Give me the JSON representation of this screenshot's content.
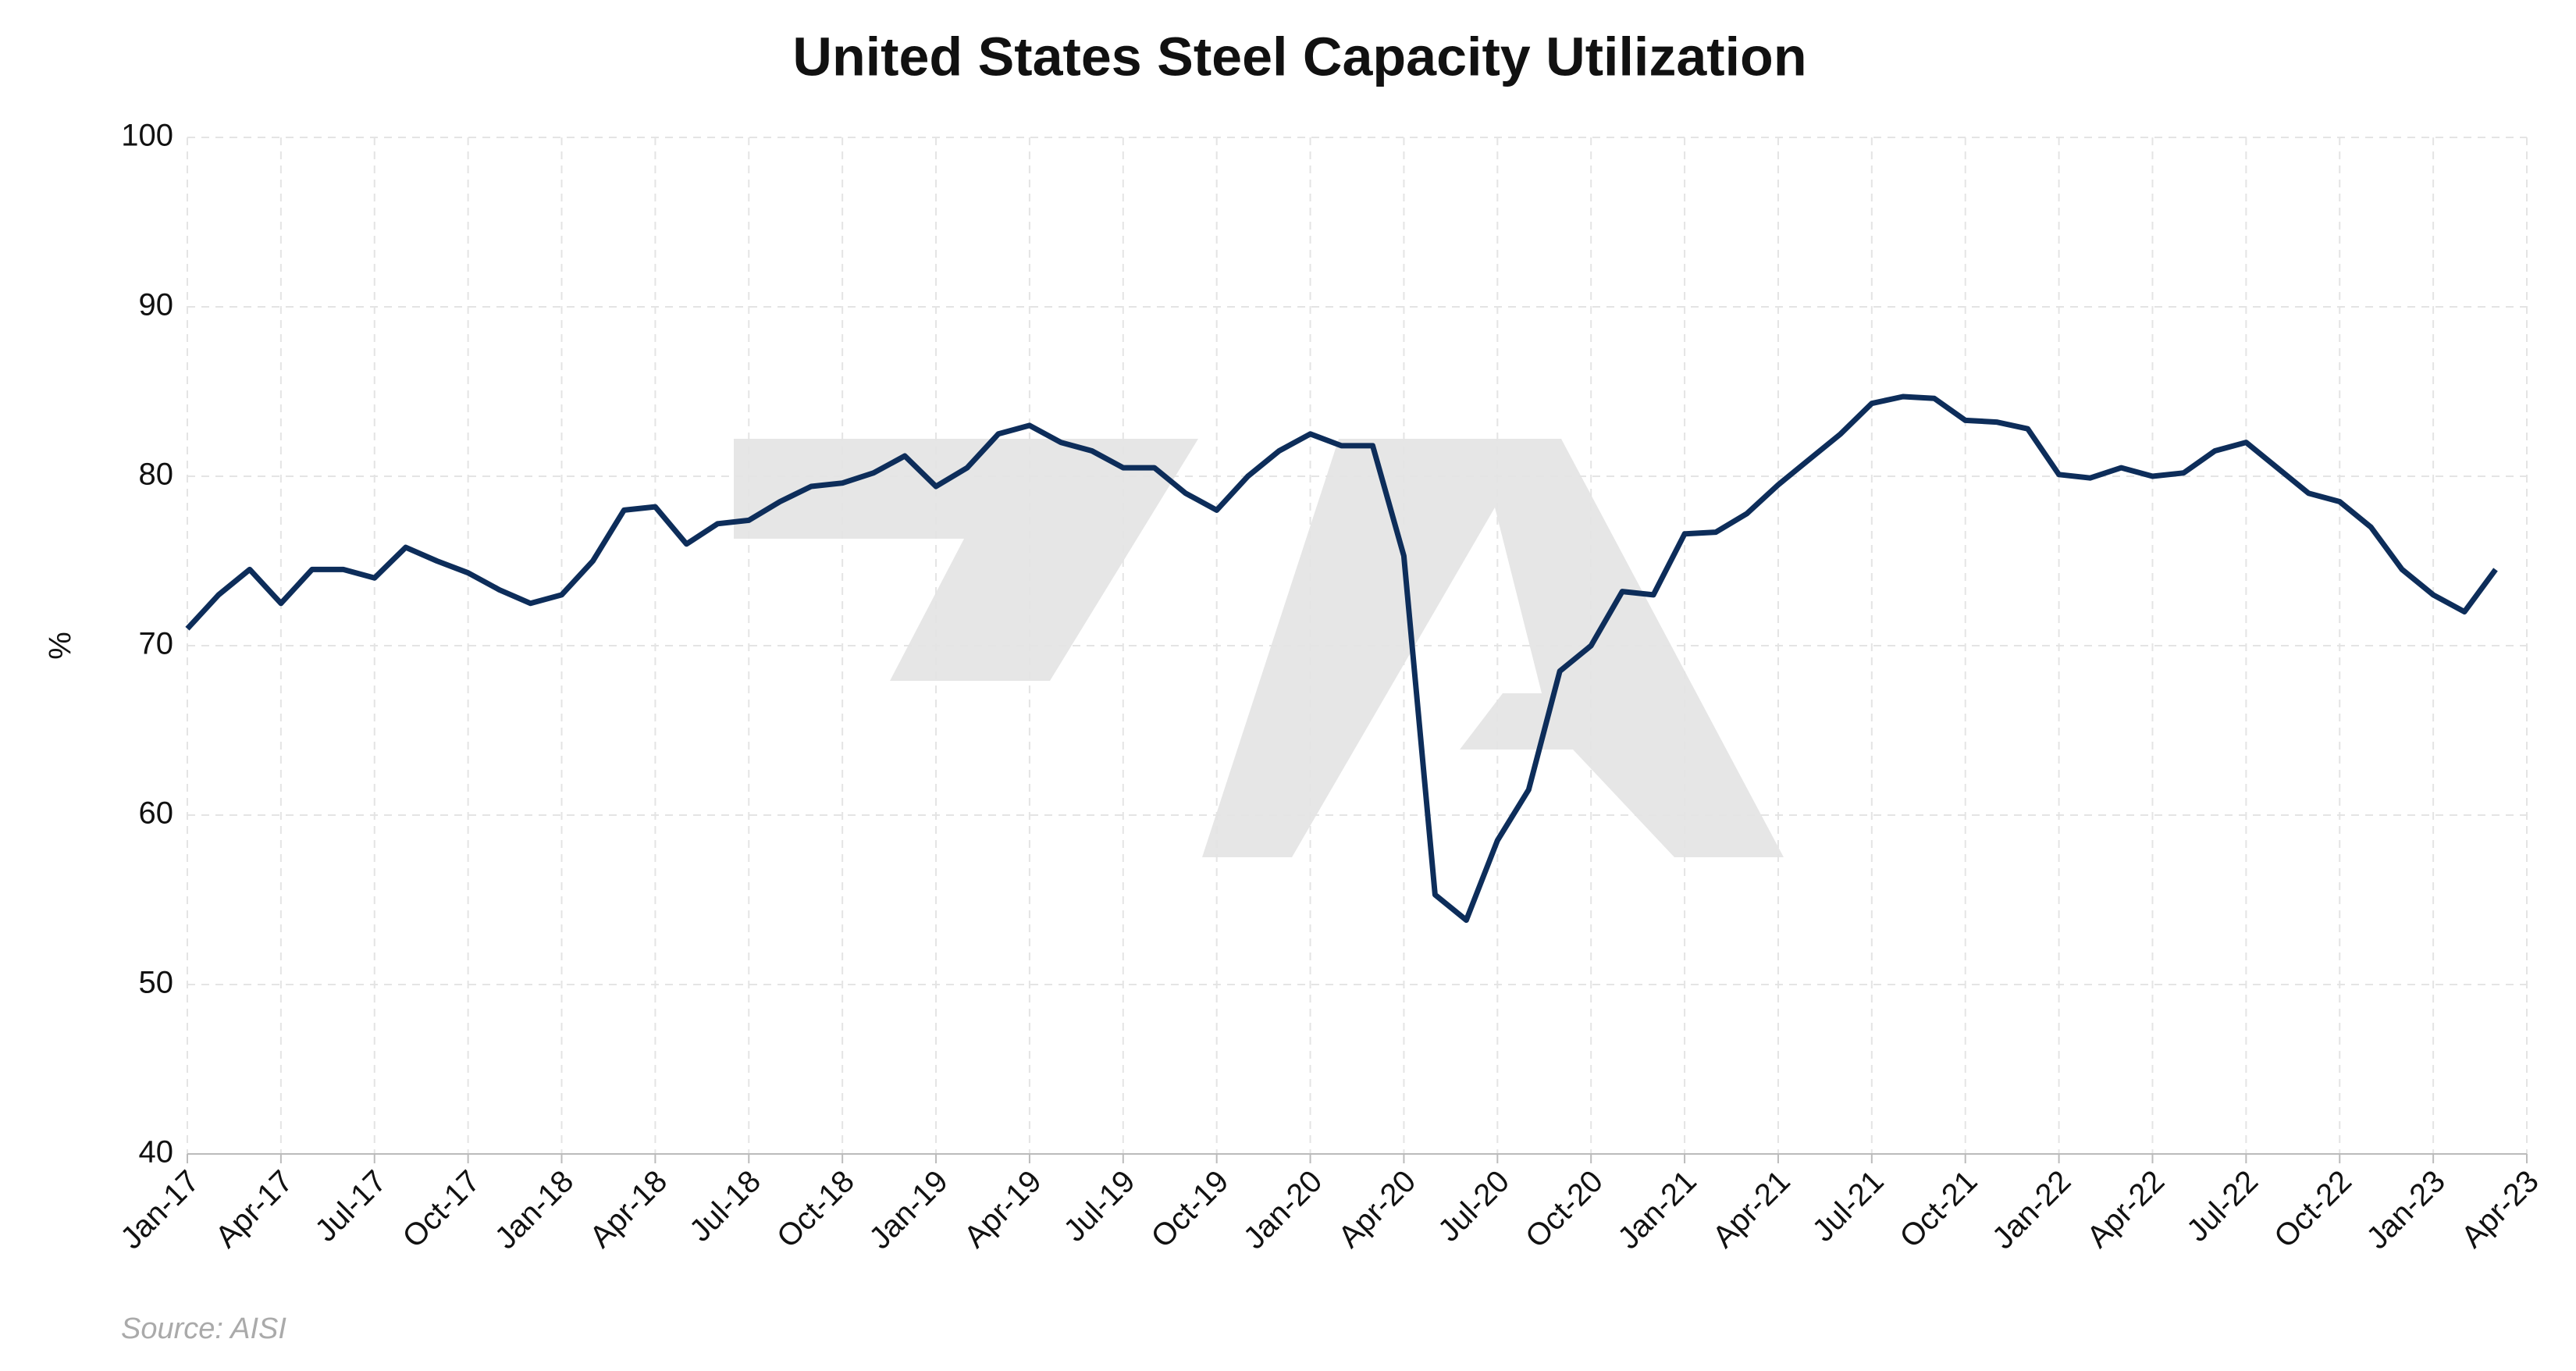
{
  "chart_data": {
    "type": "line",
    "title": "United States Steel Capacity Utilization",
    "y_label": "%",
    "source": "Source: AISI",
    "categories": [
      "Jan-17",
      null,
      null,
      "Apr-17",
      null,
      null,
      "Jul-17",
      null,
      null,
      "Oct-17",
      null,
      null,
      "Jan-18",
      null,
      null,
      "Apr-18",
      null,
      null,
      "Jul-18",
      null,
      null,
      "Oct-18",
      null,
      null,
      "Jan-19",
      null,
      null,
      "Apr-19",
      null,
      null,
      "Jul-19",
      null,
      null,
      "Oct-19",
      null,
      null,
      "Jan-20",
      null,
      null,
      "Apr-20",
      null,
      null,
      "Jul-20",
      null,
      null,
      "Oct-20",
      null,
      null,
      "Jan-21",
      null,
      null,
      "Apr-21",
      null,
      null,
      "Jul-21",
      null,
      null,
      "Oct-21",
      null,
      null,
      "Jan-22",
      null,
      null,
      "Apr-22",
      null,
      null,
      "Jul-22",
      null,
      null,
      "Oct-22",
      null,
      null,
      "Jan-23",
      null,
      null,
      "Apr-23"
    ],
    "series": [
      {
        "name": "Capacity Utilization",
        "color": "#0d2d5a",
        "values": [
          71,
          73,
          74.5,
          72.5,
          74.5,
          74.5,
          74,
          75.8,
          75,
          74.3,
          73.3,
          72.5,
          73,
          75,
          78,
          78.2,
          76,
          77.2,
          77.4,
          78.5,
          79.4,
          79.6,
          80.2,
          81.2,
          79.4,
          80.5,
          82.5,
          83,
          82,
          81.5,
          80.5,
          80.5,
          79,
          78,
          80,
          81.5,
          82.5,
          81.8,
          81.8,
          75.3,
          55.3,
          53.8,
          58.5,
          61.5,
          68.5,
          70,
          73.2,
          73,
          76.6,
          76.7,
          77.8,
          79.5,
          81,
          82.5,
          84.3,
          84.7,
          84.6,
          83.3,
          83.2,
          82.8,
          80.1,
          79.9,
          80.5,
          80,
          80.2,
          81.5,
          82,
          80.5,
          79,
          78.5,
          77,
          74.5,
          73,
          72,
          74.5,
          null
        ]
      }
    ],
    "ylim": [
      40,
      100
    ],
    "yticks": [
      40,
      50,
      60,
      70,
      80,
      90,
      100
    ],
    "grid": true
  }
}
